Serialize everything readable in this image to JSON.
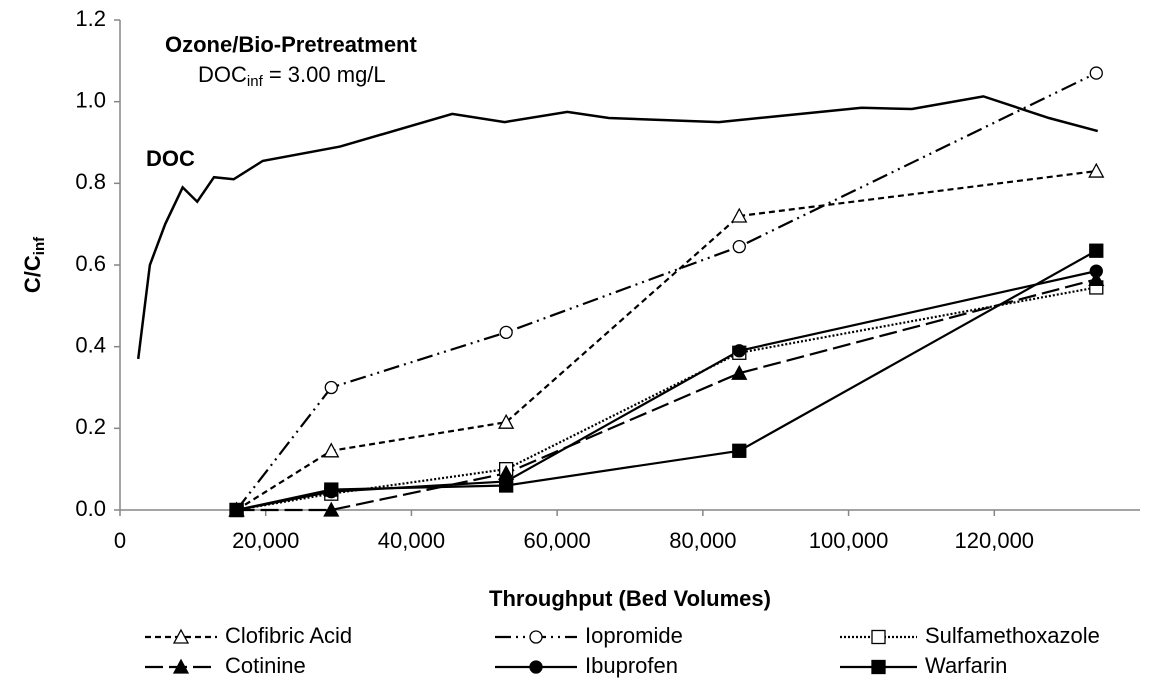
{
  "chart_data": {
    "type": "line",
    "annotation_title": "Ozone/Bio-Pretreatment",
    "annotation_doc": {
      "text": "DOC",
      "sub": "inf",
      "rest": " = 3.00 mg/L"
    },
    "curve_label": "DOC",
    "xlabel": "Throughput (Bed Volumes)",
    "ylabel": {
      "text": "C/C",
      "sub": "inf"
    },
    "xlim": [
      0,
      140000
    ],
    "ylim": [
      0,
      1.2
    ],
    "xticks": [
      0,
      {
        "value": 20000,
        "label": "20,000"
      },
      {
        "value": 40000,
        "label": "40,000"
      },
      {
        "value": 60000,
        "label": "60,000"
      },
      {
        "value": 80000,
        "label": "80,000"
      },
      {
        "value": 100000,
        "label": "100,000"
      },
      {
        "value": 120000,
        "label": "120,000"
      }
    ],
    "yticks": [
      {
        "value": 0,
        "label": "0.0"
      },
      {
        "value": 0.2,
        "label": "0.2"
      },
      {
        "value": 0.4,
        "label": "0.4"
      },
      {
        "value": 0.6,
        "label": "0.6"
      },
      {
        "value": 0.8,
        "label": "0.8"
      },
      {
        "value": 1.0,
        "label": "1.0"
      },
      {
        "value": 1.2,
        "label": "1.2"
      }
    ],
    "doc_line": {
      "color": "#000000",
      "x": [
        2500,
        4100,
        6200,
        8600,
        10600,
        12900,
        15600,
        19600,
        30200,
        45600,
        52800,
        61400,
        67100,
        82200,
        89500,
        101800,
        108700,
        118500,
        127500,
        134200
      ],
      "values": [
        0.37,
        0.6,
        0.7,
        0.79,
        0.755,
        0.815,
        0.81,
        0.855,
        0.89,
        0.97,
        0.95,
        0.975,
        0.96,
        0.95,
        0.963,
        0.985,
        0.982,
        1.013,
        0.96,
        0.928
      ]
    },
    "x": [
      16000,
      29000,
      53000,
      85000,
      134000
    ],
    "series": [
      {
        "name": "Clofibric Acid",
        "color": "#000000",
        "dash": "6,4",
        "marker": "triangle-open",
        "values": [
          0,
          0.145,
          0.215,
          0.72,
          0.83
        ]
      },
      {
        "name": "Iopromide",
        "color": "#000000",
        "dash": "16,5,2,5,2,5",
        "marker": "circle-open",
        "values": [
          0,
          0.3,
          0.435,
          0.645,
          1.07
        ]
      },
      {
        "name": "Sulfamethoxazole",
        "color": "#000000",
        "dash": "2,2",
        "marker": "square-open",
        "values": [
          0,
          0.04,
          0.1,
          0.385,
          0.545
        ]
      },
      {
        "name": "Cotinine",
        "color": "#000000",
        "dash": "18,6",
        "marker": "triangle",
        "values": [
          0,
          0,
          0.09,
          0.335,
          0.565
        ]
      },
      {
        "name": "Ibuprofen",
        "color": "#000000",
        "dash": "none",
        "marker": "circle",
        "values": [
          0,
          0.045,
          0.07,
          0.39,
          0.585
        ]
      },
      {
        "name": "Warfarin",
        "color": "#000000",
        "dash": "none",
        "marker": "square",
        "values": [
          0,
          0.05,
          0.06,
          0.145,
          0.635
        ]
      }
    ]
  }
}
